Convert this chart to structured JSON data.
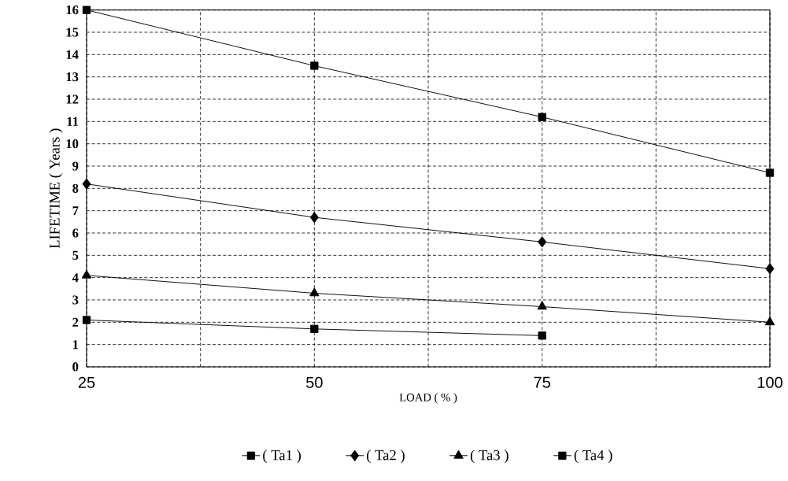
{
  "chart_data": {
    "type": "line",
    "xlabel": "LOAD ( % )",
    "ylabel": "LIFETIME ( Years )",
    "x": [
      25,
      50,
      75,
      100
    ],
    "series": [
      {
        "name": "( Ta1 )",
        "color": "#000000",
        "marker": "square",
        "values": [
          16,
          13.5,
          11.2,
          8.7
        ]
      },
      {
        "name": "( Ta2 )",
        "color": "#000000",
        "marker": "diamond",
        "values": [
          8.2,
          6.7,
          5.6,
          4.4
        ]
      },
      {
        "name": "( Ta3 )",
        "color": "#000000",
        "marker": "triangle",
        "values": [
          4.1,
          3.3,
          2.7,
          2.0
        ]
      },
      {
        "name": "( Ta4 )",
        "color": "#000000",
        "marker": "square",
        "values": [
          2.1,
          1.7,
          1.4,
          null
        ]
      }
    ],
    "xlim": [
      25,
      100
    ],
    "xticks": [
      25,
      {
        "value": 37.5,
        "label": null
      },
      50,
      {
        "value": 62.5,
        "label": null
      },
      75,
      {
        "value": 87.5,
        "label": null
      },
      100
    ],
    "ylim": [
      0,
      16
    ],
    "yticks": [
      0,
      1,
      2,
      3,
      4,
      5,
      6,
      7,
      8,
      9,
      10,
      11,
      12,
      13,
      14,
      15,
      16
    ],
    "grid": true,
    "legend": "bottom",
    "line_style": "solid"
  }
}
